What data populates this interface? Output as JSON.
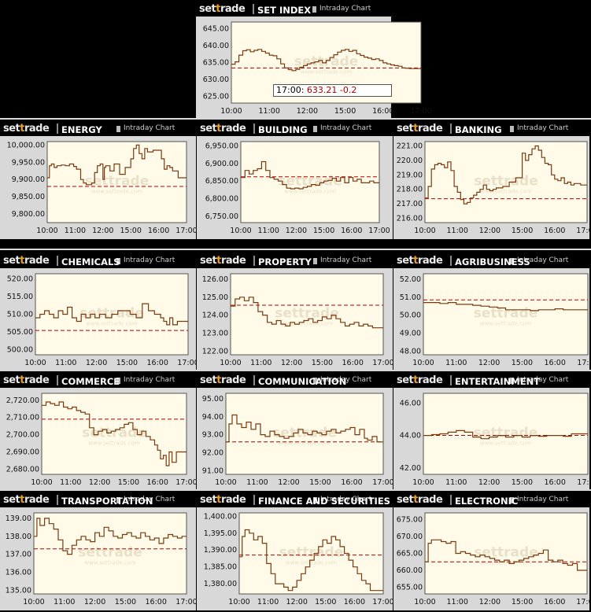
{
  "header": {
    "logo_pre": "set",
    "logo_tt": "t",
    "logo_post": "rade",
    "badge_label": "Intraday Chart"
  },
  "colors": {
    "line": "#7a3a10",
    "baseline": "#b00000",
    "plot_bg": "#fffbe8",
    "watermark": "#e9e0c8"
  },
  "watermark": {
    "main": "settrade",
    "sub": "www.settrade.com"
  },
  "tooltip": {
    "time": "17:00:",
    "value": "633.21",
    "change": "-0.2"
  },
  "x_ticks": [
    "10:00",
    "11:00",
    "12:00",
    "15:00",
    "16:00",
    "17:00"
  ],
  "chart_data": [
    {
      "type": "line",
      "title": "SET INDEX",
      "y_ticks": [
        "645.00",
        "640.00",
        "635.00",
        "630.00",
        "625.00"
      ],
      "ylim": [
        623,
        647
      ],
      "baseline": 633.4,
      "x": [
        0,
        0.1,
        0.2,
        0.3,
        0.4,
        0.5,
        0.6,
        0.7,
        0.8,
        0.9,
        1,
        1.1,
        1.2,
        1.3,
        1.4,
        1.5,
        1.6,
        1.7,
        1.8,
        1.9,
        2,
        2.1,
        2.2,
        2.3,
        2.4,
        2.5,
        2.6,
        2.7,
        2.8,
        2.9,
        3,
        3.1,
        3.2,
        3.3,
        3.4,
        3.5,
        3.6,
        3.7,
        3.8,
        3.9,
        4,
        4.1,
        4.2,
        4.3,
        4.4,
        4.5,
        4.6,
        4.7,
        4.8,
        4.9,
        5
      ],
      "values": [
        634.5,
        635.2,
        637.2,
        638.5,
        638.8,
        638.2,
        638.6,
        638.9,
        638.3,
        637.8,
        637.2,
        637,
        636.1,
        634.6,
        633.4,
        632.9,
        632.6,
        633,
        633.6,
        634.1,
        634.6,
        634.9,
        635.2,
        635.6,
        634.9,
        635.6,
        636.5,
        637.3,
        638.1,
        638.6,
        638.9,
        638.3,
        638.6,
        637.6,
        637.1,
        636.6,
        636.3,
        635.9,
        636.1,
        635.6,
        634.9,
        634.6,
        634.3,
        634.1,
        633.9,
        633.4,
        633.3,
        633.2,
        633.2,
        633.2,
        633.21
      ]
    },
    {
      "type": "line",
      "title": "ENERGY",
      "y_ticks": [
        "10,000.00",
        "9,950.00",
        "9,900.00",
        "9,850.00",
        "9,800.00"
      ],
      "ylim": [
        9775,
        10010
      ],
      "baseline": 9880,
      "x": [
        0,
        0.08,
        0.15,
        0.25,
        0.35,
        0.5,
        0.65,
        0.8,
        0.95,
        1.05,
        1.2,
        1.3,
        1.4,
        1.5,
        1.6,
        1.7,
        1.8,
        1.9,
        2,
        2.05,
        2.1,
        2.25,
        2.4,
        2.6,
        2.8,
        3,
        3.1,
        3.2,
        3.3,
        3.4,
        3.5,
        3.6,
        3.8,
        4,
        4.1,
        4.2,
        4.3,
        4.4,
        4.5,
        4.7,
        4.9,
        5
      ],
      "values": [
        9905,
        9940,
        9945,
        9935,
        9940,
        9942,
        9940,
        9945,
        9938,
        9930,
        9900,
        9890,
        9885,
        9885,
        9890,
        9920,
        9940,
        9945,
        9900,
        9935,
        9940,
        9925,
        9945,
        9915,
        9935,
        9960,
        9990,
        10000,
        9975,
        9960,
        9990,
        9980,
        9985,
        9985,
        9960,
        9930,
        9940,
        9935,
        9925,
        9905,
        9905,
        9905
      ]
    },
    {
      "type": "line",
      "title": "BUILDING",
      "y_ticks": [
        "6,950.00",
        "6,900.00",
        "6,850.00",
        "6,800.00",
        "6,750.00"
      ],
      "ylim": [
        6732,
        6962
      ],
      "baseline": 6862,
      "x": [
        0,
        0.15,
        0.3,
        0.45,
        0.6,
        0.75,
        0.9,
        1.05,
        1.2,
        1.35,
        1.5,
        1.65,
        1.8,
        1.95,
        2.1,
        2.25,
        2.4,
        2.55,
        2.7,
        2.85,
        3,
        3.15,
        3.3,
        3.45,
        3.6,
        3.75,
        3.9,
        4.05,
        4.2,
        4.35,
        4.5,
        4.65,
        4.8,
        5
      ],
      "values": [
        6860,
        6880,
        6870,
        6880,
        6885,
        6905,
        6880,
        6860,
        6855,
        6850,
        6840,
        6830,
        6828,
        6830,
        6828,
        6832,
        6835,
        6840,
        6838,
        6845,
        6850,
        6852,
        6858,
        6850,
        6860,
        6845,
        6860,
        6850,
        6855,
        6845,
        6845,
        6850,
        6845,
        6845
      ]
    },
    {
      "type": "line",
      "title": "BANKING",
      "y_ticks": [
        "221.00",
        "220.00",
        "219.00",
        "218.00",
        "217.00",
        "216.00"
      ],
      "ylim": [
        215.7,
        221.3
      ],
      "baseline": 217.35,
      "x": [
        0,
        0.1,
        0.2,
        0.3,
        0.4,
        0.5,
        0.6,
        0.7,
        0.8,
        0.9,
        1,
        1.1,
        1.2,
        1.3,
        1.4,
        1.5,
        1.6,
        1.7,
        1.8,
        1.9,
        2,
        2.1,
        2.2,
        2.4,
        2.6,
        2.8,
        3,
        3.1,
        3.2,
        3.3,
        3.4,
        3.5,
        3.6,
        3.7,
        3.8,
        3.9,
        4,
        4.1,
        4.2,
        4.3,
        4.4,
        4.5,
        4.6,
        4.8,
        5
      ],
      "values": [
        217.4,
        218.2,
        219.4,
        219.7,
        219.8,
        219.7,
        219.5,
        219.9,
        219.3,
        218.2,
        217.8,
        217.3,
        217.0,
        217.1,
        217.4,
        217.6,
        217.8,
        218.0,
        218.3,
        218.0,
        217.9,
        218.0,
        218.1,
        218.2,
        218.5,
        218.8,
        220.5,
        220.0,
        220.4,
        220.8,
        221.0,
        220.7,
        220.2,
        219.8,
        219.7,
        219.0,
        218.7,
        218.6,
        218.8,
        218.4,
        218.5,
        218.3,
        218.4,
        218.3,
        218.3
      ]
    },
    {
      "type": "line",
      "title": "CHEMICALS",
      "y_ticks": [
        "520.00",
        "515.00",
        "510.00",
        "505.00",
        "500.00"
      ],
      "ylim": [
        498.5,
        521.5
      ],
      "baseline": 505.4,
      "x": [
        0,
        0.15,
        0.3,
        0.45,
        0.6,
        0.75,
        0.9,
        1.05,
        1.2,
        1.35,
        1.5,
        1.65,
        1.8,
        1.95,
        2.1,
        2.3,
        2.5,
        2.7,
        2.9,
        3.1,
        3.3,
        3.5,
        3.7,
        3.9,
        4.1,
        4.2,
        4.3,
        4.4,
        4.5,
        4.65,
        4.8,
        5
      ],
      "values": [
        509,
        510,
        511,
        510,
        509,
        511,
        510,
        512,
        509,
        508,
        510,
        509,
        510,
        509,
        510,
        509,
        510,
        511,
        511,
        510,
        509,
        513,
        511,
        510,
        509,
        508,
        507,
        509,
        507,
        508,
        508,
        508
      ]
    },
    {
      "type": "line",
      "title": "PROPERTY",
      "y_ticks": [
        "126.00",
        "125.00",
        "124.00",
        "123.00",
        "122.00"
      ],
      "ylim": [
        121.8,
        126.3
      ],
      "baseline": 124.55,
      "x": [
        0,
        0.15,
        0.3,
        0.45,
        0.6,
        0.75,
        0.9,
        1.05,
        1.2,
        1.35,
        1.5,
        1.65,
        1.8,
        1.95,
        2.1,
        2.25,
        2.4,
        2.55,
        2.7,
        2.85,
        3,
        3.15,
        3.3,
        3.45,
        3.6,
        3.75,
        3.9,
        4.05,
        4.2,
        4.35,
        4.5,
        4.65,
        4.8,
        5
      ],
      "values": [
        124.5,
        124.9,
        125.0,
        124.8,
        125.0,
        124.7,
        124.2,
        124.0,
        123.6,
        123.5,
        123.7,
        123.5,
        123.4,
        123.6,
        123.5,
        123.6,
        123.7,
        123.8,
        123.6,
        123.7,
        123.9,
        123.8,
        124.0,
        123.8,
        123.6,
        123.4,
        123.5,
        123.6,
        123.4,
        123.5,
        123.4,
        123.3,
        123.3,
        123.3
      ]
    },
    {
      "type": "line",
      "title": "AGRIBUSINESS",
      "y_ticks": [
        "52.00",
        "51.00",
        "50.00",
        "49.00",
        "48.00"
      ],
      "ylim": [
        47.8,
        52.3
      ],
      "baseline": 50.85,
      "x": [
        0,
        0.25,
        0.5,
        0.75,
        1,
        1.25,
        1.5,
        1.75,
        2,
        2.25,
        2.5,
        2.75,
        3,
        3.25,
        3.5,
        3.75,
        4,
        4.25,
        4.5,
        4.75,
        5
      ],
      "values": [
        50.7,
        50.7,
        50.65,
        50.7,
        50.6,
        50.6,
        50.55,
        50.5,
        50.45,
        50.4,
        50.3,
        50.3,
        50.3,
        50.25,
        50.3,
        50.3,
        50.35,
        50.3,
        50.3,
        50.3,
        50.3
      ]
    },
    {
      "type": "line",
      "title": "COMMERCE",
      "y_ticks": [
        "2,720.00",
        "2,710.00",
        "2,700.00",
        "2,690.00",
        "2,680.00"
      ],
      "ylim": [
        2677,
        2724
      ],
      "baseline": 2709,
      "x": [
        0,
        0.15,
        0.3,
        0.45,
        0.6,
        0.75,
        0.9,
        1.05,
        1.2,
        1.35,
        1.5,
        1.65,
        1.8,
        1.95,
        2.1,
        2.25,
        2.4,
        2.55,
        2.7,
        2.85,
        3,
        3.15,
        3.3,
        3.45,
        3.6,
        3.75,
        3.9,
        4,
        4.1,
        4.2,
        4.3,
        4.4,
        4.5,
        4.65,
        4.8,
        5
      ],
      "values": [
        2717,
        2719,
        2718,
        2717,
        2719,
        2716,
        2715,
        2716,
        2714,
        2713,
        2712,
        2704,
        2700,
        2702,
        2703,
        2701,
        2702,
        2703,
        2704,
        2706,
        2707,
        2703,
        2700,
        2702,
        2699,
        2697,
        2694,
        2691,
        2686,
        2688,
        2682,
        2690,
        2684,
        2690,
        2690,
        2690
      ]
    },
    {
      "type": "line",
      "title": "COMMUNICATION",
      "y_ticks": [
        "95.00",
        "94.00",
        "93.00",
        "92.00",
        "91.00"
      ],
      "ylim": [
        90.8,
        95.3
      ],
      "baseline": 92.6,
      "x": [
        0,
        0.1,
        0.2,
        0.35,
        0.5,
        0.65,
        0.8,
        0.95,
        1.1,
        1.25,
        1.4,
        1.55,
        1.7,
        1.85,
        2,
        2.15,
        2.3,
        2.45,
        2.6,
        2.75,
        2.9,
        3.05,
        3.2,
        3.35,
        3.5,
        3.65,
        3.8,
        3.95,
        4.1,
        4.25,
        4.4,
        4.5,
        4.65,
        4.8,
        5
      ],
      "values": [
        92.6,
        93.6,
        94.1,
        93.6,
        93.4,
        93.7,
        93.3,
        93.6,
        93.0,
        92.9,
        93.2,
        93.0,
        92.9,
        92.8,
        92.9,
        93.1,
        93.3,
        93.1,
        93.0,
        93.2,
        93.1,
        93.0,
        93.2,
        93.3,
        93.1,
        93.2,
        93.3,
        93.4,
        93.0,
        93.3,
        92.8,
        92.7,
        92.9,
        92.6,
        92.6
      ]
    },
    {
      "type": "line",
      "title": "ENTERTAINMENT",
      "y_ticks": [
        "46.00",
        "44.00",
        "42.00"
      ],
      "ylim": [
        41.6,
        46.6
      ],
      "baseline": 44.0,
      "x": [
        0,
        0.25,
        0.5,
        0.75,
        1,
        1.25,
        1.5,
        1.75,
        2,
        2.25,
        2.5,
        2.75,
        3,
        3.25,
        3.5,
        3.75,
        4,
        4.25,
        4.5,
        4.75,
        5
      ],
      "values": [
        44.0,
        44.05,
        44.1,
        44.2,
        44.3,
        44.2,
        43.9,
        43.8,
        43.9,
        44.0,
        43.9,
        44.0,
        43.9,
        44.0,
        43.95,
        44.0,
        44.0,
        43.95,
        44.1,
        44.1,
        44.1
      ]
    },
    {
      "type": "line",
      "title": "TRANSPORTATION",
      "y_ticks": [
        "139.00",
        "138.00",
        "137.00",
        "136.00",
        "135.00"
      ],
      "ylim": [
        134.8,
        139.3
      ],
      "baseline": 137.3,
      "x": [
        0,
        0.1,
        0.2,
        0.35,
        0.5,
        0.65,
        0.8,
        0.95,
        1.1,
        1.25,
        1.4,
        1.55,
        1.7,
        1.85,
        2,
        2.15,
        2.3,
        2.45,
        2.6,
        2.75,
        2.9,
        3.05,
        3.2,
        3.35,
        3.5,
        3.65,
        3.8,
        3.95,
        4.1,
        4.25,
        4.4,
        4.55,
        4.7,
        4.85,
        5
      ],
      "values": [
        138.0,
        139.0,
        138.6,
        139.0,
        138.7,
        138.4,
        137.8,
        137.2,
        137.0,
        137.5,
        137.8,
        138.0,
        137.8,
        137.7,
        138.2,
        138.0,
        138.5,
        138.3,
        138.0,
        137.9,
        138.1,
        138.2,
        138.0,
        137.9,
        138.2,
        138.0,
        137.8,
        137.9,
        137.6,
        137.9,
        138.1,
        138.0,
        137.9,
        138.0,
        138.0
      ]
    },
    {
      "type": "line",
      "title": "FINANCE AND SECURITIES",
      "y_ticks": [
        "1,400.00",
        "1,395.00",
        "1,390.00",
        "1,385.00",
        "1,380.00"
      ],
      "ylim": [
        1377,
        1401
      ],
      "baseline": 1388.5,
      "x": [
        0,
        0.1,
        0.2,
        0.35,
        0.5,
        0.65,
        0.8,
        0.95,
        1.1,
        1.25,
        1.4,
        1.55,
        1.7,
        1.85,
        2,
        2.15,
        2.3,
        2.45,
        2.6,
        2.75,
        2.9,
        3.05,
        3.2,
        3.35,
        3.5,
        3.65,
        3.8,
        3.95,
        4.1,
        4.25,
        4.4,
        4.55,
        4.7,
        4.85,
        5
      ],
      "values": [
        1388,
        1394,
        1396,
        1395,
        1393,
        1394,
        1392,
        1386,
        1383,
        1380,
        1380,
        1379,
        1378,
        1379,
        1381,
        1383,
        1385,
        1387,
        1389,
        1391,
        1393,
        1392,
        1394,
        1393,
        1391,
        1389,
        1387,
        1385,
        1383,
        1381,
        1380,
        1378,
        1378,
        1378,
        1378
      ]
    },
    {
      "type": "line",
      "title": "ELECTRONIC",
      "y_ticks": [
        "675.00",
        "670.00",
        "665.00",
        "660.00",
        "655.00"
      ],
      "ylim": [
        653,
        677
      ],
      "baseline": 662.5,
      "x": [
        0,
        0.1,
        0.2,
        0.35,
        0.5,
        0.65,
        0.8,
        0.95,
        1.1,
        1.25,
        1.4,
        1.55,
        1.7,
        1.85,
        2,
        2.15,
        2.3,
        2.45,
        2.6,
        2.75,
        2.9,
        3.05,
        3.2,
        3.35,
        3.5,
        3.65,
        3.8,
        3.95,
        4.1,
        4.25,
        4.4,
        4.55,
        4.7,
        4.85,
        5
      ],
      "values": [
        662.5,
        668,
        669,
        669,
        668.5,
        668,
        668.5,
        665,
        665.5,
        665,
        664.5,
        664,
        664.5,
        664,
        663.5,
        663,
        662.5,
        663,
        662,
        662.5,
        663,
        663.5,
        664,
        664.5,
        665,
        666,
        663,
        662.5,
        663,
        662,
        661.5,
        662,
        660,
        660,
        660
      ]
    }
  ]
}
